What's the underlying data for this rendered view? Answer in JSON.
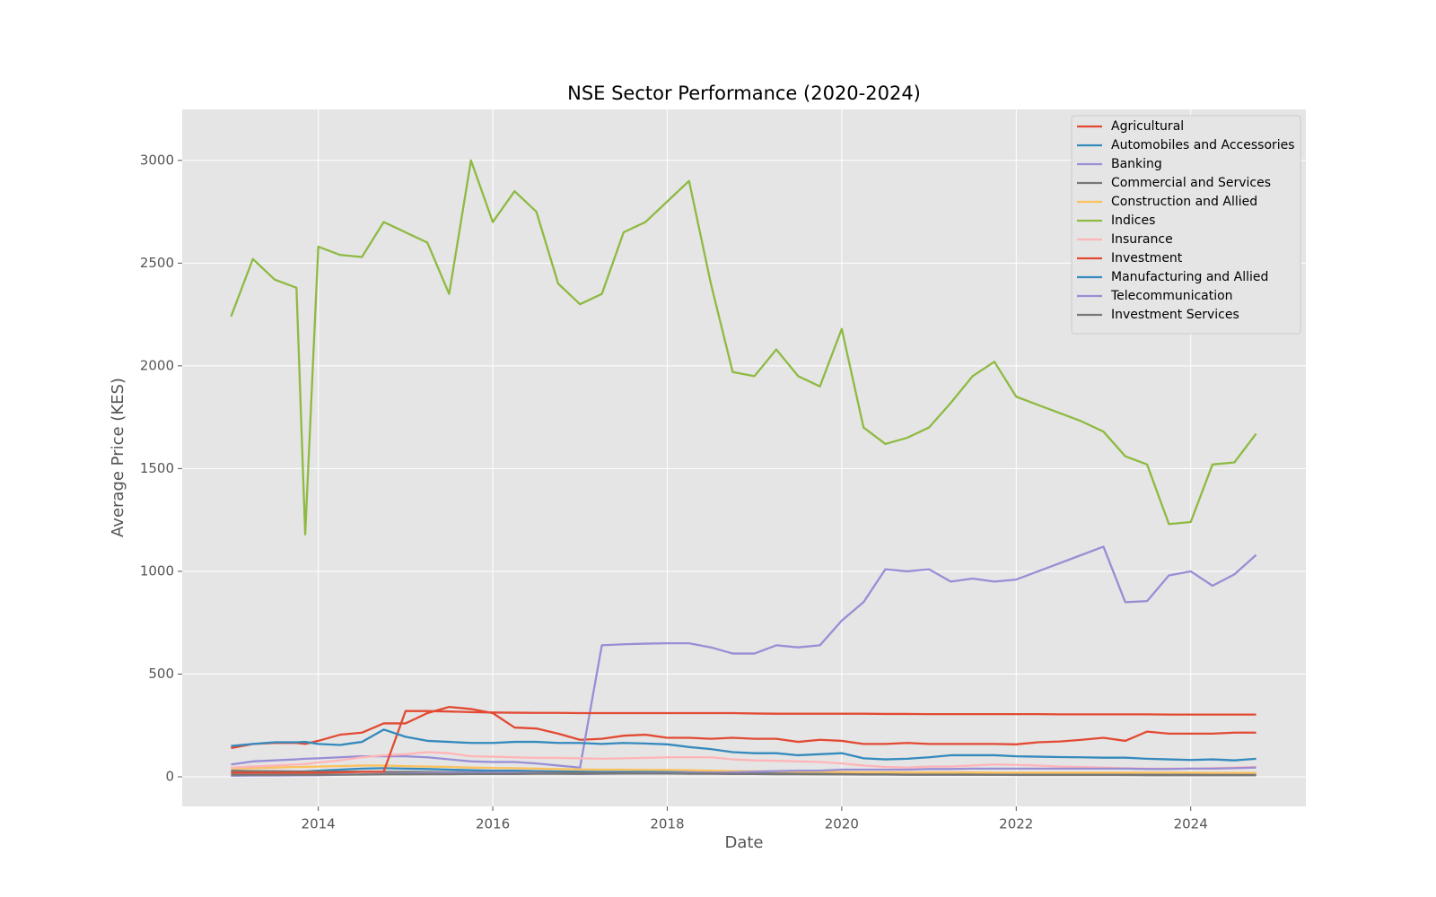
{
  "chart_data": {
    "type": "line",
    "title": "NSE Sector Performance (2020-2024)",
    "x_label": "Date",
    "y_label": "Average Price (KES)",
    "x": [
      2013.0,
      2013.25,
      2013.5,
      2013.75,
      2013.85,
      2014.0,
      2014.25,
      2014.5,
      2014.75,
      2015.0,
      2015.25,
      2015.5,
      2015.75,
      2016.0,
      2016.25,
      2016.5,
      2016.75,
      2017.0,
      2017.25,
      2017.5,
      2017.75,
      2018.0,
      2018.25,
      2018.5,
      2018.75,
      2019.0,
      2019.25,
      2019.5,
      2019.75,
      2020.0,
      2020.25,
      2020.5,
      2020.75,
      2021.0,
      2021.25,
      2021.5,
      2021.75,
      2022.0,
      2022.25,
      2022.5,
      2022.75,
      2023.0,
      2023.25,
      2023.5,
      2023.75,
      2024.0,
      2024.25,
      2024.5,
      2024.75
    ],
    "xlim": [
      2012.44,
      2025.32
    ],
    "xticks": [
      2014,
      2016,
      2018,
      2020,
      2022,
      2024
    ],
    "ylim": [
      -144,
      3248
    ],
    "yticks": [
      0,
      500,
      1000,
      1500,
      2000,
      2500,
      3000
    ],
    "grid": true,
    "legend_position": "upper right",
    "series": [
      {
        "name": "Agricultural",
        "color": "#E24A33",
        "values": [
          140,
          160,
          165,
          165,
          160,
          175,
          205,
          215,
          260,
          260,
          310,
          340,
          330,
          310,
          240,
          235,
          210,
          180,
          185,
          200,
          205,
          190,
          190,
          185,
          190,
          185,
          185,
          170,
          180,
          175,
          160,
          160,
          165,
          160,
          160,
          160,
          160,
          158,
          168,
          172,
          180,
          190,
          175,
          220,
          210,
          210,
          210,
          215,
          215
        ]
      },
      {
        "name": "Automobiles and Accessories",
        "color": "#348ABD",
        "values": [
          20,
          22,
          24,
          25,
          26,
          30,
          35,
          40,
          42,
          40,
          38,
          35,
          32,
          30,
          30,
          28,
          26,
          25,
          24,
          24,
          25,
          25,
          24,
          22,
          20,
          20,
          20,
          19,
          19,
          18,
          18,
          17,
          17,
          17,
          18,
          18,
          18,
          18,
          18,
          18,
          18,
          18,
          18,
          17,
          17,
          17,
          17,
          16,
          16
        ]
      },
      {
        "name": "Banking",
        "color": "#988ED5",
        "values": [
          60,
          75,
          80,
          85,
          88,
          90,
          95,
          100,
          100,
          100,
          95,
          85,
          75,
          72,
          72,
          65,
          55,
          45,
          640,
          645,
          648,
          650,
          650,
          630,
          600,
          600,
          640,
          630,
          640,
          760,
          850,
          1010,
          1000,
          1010,
          950,
          965,
          950,
          960,
          1000,
          1040,
          1080,
          1120,
          850,
          855,
          980,
          1000,
          930,
          985,
          1080
        ]
      },
      {
        "name": "Commercial and Services",
        "color": "#777777",
        "values": [
          30,
          28,
          27,
          26,
          26,
          25,
          25,
          25,
          24,
          24,
          23,
          23,
          22,
          22,
          22,
          21,
          20,
          20,
          19,
          19,
          19,
          18,
          18,
          17,
          16,
          15,
          15,
          14,
          14,
          13,
          12,
          12,
          11,
          11,
          11,
          11,
          10,
          10,
          10,
          10,
          10,
          10,
          9,
          9,
          9,
          9,
          9,
          9,
          9
        ]
      },
      {
        "name": "Construction and Allied",
        "color": "#FBC15E",
        "values": [
          40,
          42,
          45,
          48,
          48,
          50,
          52,
          55,
          55,
          52,
          50,
          48,
          45,
          43,
          42,
          40,
          38,
          36,
          35,
          35,
          34,
          33,
          32,
          30,
          28,
          27,
          26,
          25,
          24,
          23,
          22,
          22,
          21,
          21,
          21,
          21,
          20,
          20,
          20,
          20,
          20,
          20,
          20,
          20,
          20,
          20,
          19,
          19,
          19
        ]
      },
      {
        "name": "Indices",
        "color": "#8EBA42",
        "values": [
          2240,
          2520,
          2420,
          2380,
          1180,
          2580,
          2540,
          2530,
          2700,
          2650,
          2600,
          2350,
          3000,
          2700,
          2850,
          2750,
          2400,
          2300,
          2350,
          2650,
          2700,
          2800,
          2900,
          2400,
          1970,
          1950,
          2080,
          1950,
          1900,
          2180,
          1700,
          1620,
          1650,
          1700,
          1820,
          1950,
          2020,
          1850,
          1810,
          1770,
          1730,
          1680,
          1560,
          1520,
          1230,
          1240,
          1520,
          1530,
          1670
        ]
      },
      {
        "name": "Insurance",
        "color": "#FFB5B8",
        "values": [
          45,
          50,
          55,
          60,
          62,
          70,
          80,
          95,
          105,
          110,
          120,
          115,
          100,
          98,
          95,
          92,
          92,
          90,
          88,
          90,
          92,
          95,
          95,
          95,
          85,
          80,
          78,
          75,
          72,
          65,
          55,
          48,
          45,
          50,
          50,
          55,
          60,
          58,
          55,
          50,
          48,
          45,
          42,
          40,
          40,
          40,
          42,
          45,
          48
        ]
      },
      {
        "name": "Investment",
        "color": "#E24A33",
        "values": [
          20,
          20,
          20,
          20,
          20,
          20,
          22,
          24,
          25,
          320,
          320,
          318,
          315,
          313,
          312,
          311,
          311,
          310,
          310,
          310,
          310,
          310,
          310,
          310,
          310,
          308,
          307,
          307,
          307,
          307,
          307,
          306,
          306,
          305,
          305,
          305,
          305,
          305,
          305,
          304,
          304,
          304,
          304,
          304,
          303,
          303,
          303,
          303,
          303
        ]
      },
      {
        "name": "Manufacturing and Allied",
        "color": "#348ABD",
        "values": [
          150,
          160,
          168,
          168,
          170,
          160,
          155,
          170,
          230,
          195,
          175,
          170,
          165,
          165,
          170,
          170,
          165,
          165,
          160,
          165,
          162,
          158,
          145,
          135,
          120,
          115,
          115,
          105,
          110,
          115,
          90,
          85,
          88,
          95,
          105,
          105,
          105,
          100,
          98,
          96,
          95,
          93,
          93,
          88,
          85,
          82,
          85,
          80,
          88
        ]
      },
      {
        "name": "Telecommunication",
        "color": "#988ED5",
        "values": [
          5,
          6,
          6,
          7,
          7,
          8,
          10,
          12,
          14,
          16,
          18,
          20,
          20,
          20,
          20,
          18,
          16,
          14,
          15,
          16,
          18,
          18,
          20,
          20,
          22,
          25,
          28,
          30,
          30,
          35,
          35,
          35,
          35,
          38,
          38,
          40,
          40,
          40,
          40,
          40,
          40,
          40,
          40,
          38,
          38,
          40,
          40,
          42,
          45
        ]
      },
      {
        "name": "Investment Services",
        "color": "#777777",
        "values": [
          10,
          10,
          10,
          10,
          10,
          10,
          11,
          11,
          12,
          12,
          13,
          13,
          14,
          14,
          14,
          15,
          15,
          15,
          16,
          16,
          16,
          16,
          15,
          15,
          14,
          14,
          13,
          13,
          12,
          12,
          11,
          11,
          10,
          10,
          10,
          10,
          10,
          9,
          9,
          9,
          9,
          9,
          9,
          8,
          8,
          8,
          8,
          8,
          8
        ]
      }
    ]
  }
}
